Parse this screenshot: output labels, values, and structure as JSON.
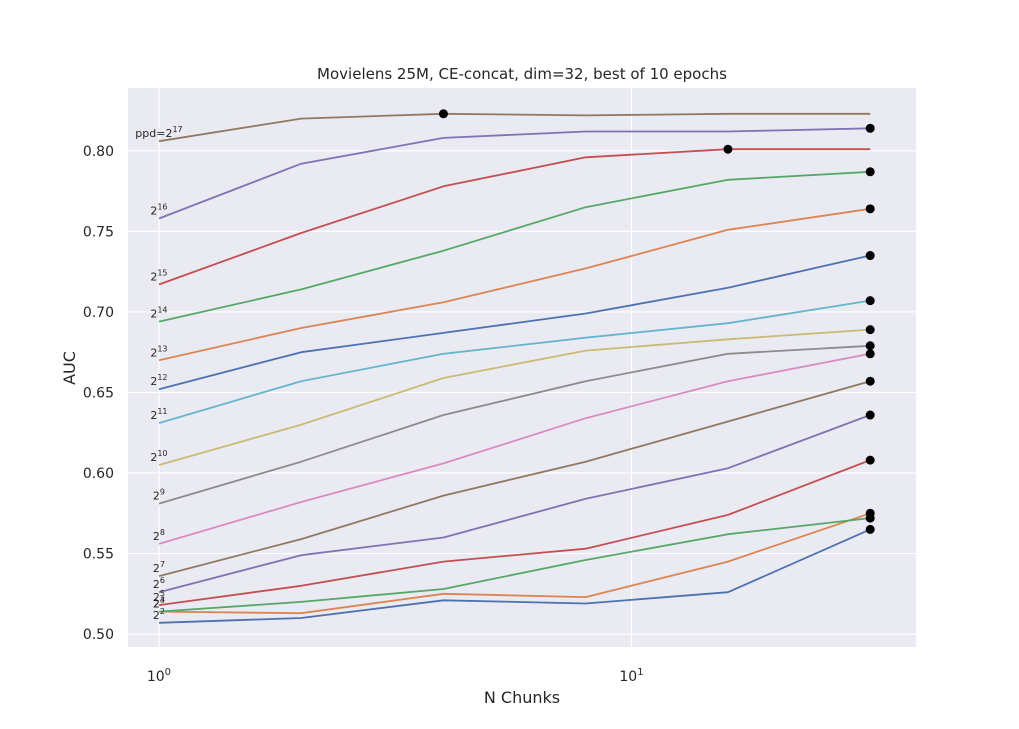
{
  "chart_data": {
    "type": "line",
    "title": "Movielens 25M, CE-concat, dim=32, best of 10 epochs",
    "xlabel": "N Chunks",
    "ylabel": "AUC",
    "xscale": "log",
    "xlim": [
      0.86,
      40
    ],
    "ylim": [
      0.492,
      0.839
    ],
    "grid": true,
    "background": "#eaeaf2",
    "grid_color": "#ffffff",
    "x": [
      1,
      2,
      4,
      8,
      16,
      32
    ],
    "x_ticks": [
      {
        "value": 1,
        "base": "10",
        "exp": "0"
      },
      {
        "value": 10,
        "base": "10",
        "exp": "1"
      }
    ],
    "y_ticks": [
      "0.50",
      "0.55",
      "0.60",
      "0.65",
      "0.70",
      "0.75",
      "0.80"
    ],
    "series": [
      {
        "label_prefix": "",
        "base": "2",
        "exp": "2",
        "color": "#4c72b0",
        "values": [
          0.507,
          0.51,
          0.521,
          0.519,
          0.526,
          0.565
        ],
        "best_index": 5
      },
      {
        "label_prefix": "",
        "base": "2",
        "exp": "3",
        "color": "#dd8452",
        "values": [
          0.514,
          0.513,
          0.525,
          0.523,
          0.545,
          0.575
        ],
        "best_index": 5
      },
      {
        "label_prefix": "",
        "base": "2",
        "exp": "4",
        "color": "#55a868",
        "values": [
          0.514,
          0.52,
          0.528,
          0.546,
          0.562,
          0.572
        ],
        "best_index": 5
      },
      {
        "label_prefix": "",
        "base": "2",
        "exp": "5",
        "color": "#c44e52",
        "values": [
          0.518,
          0.53,
          0.545,
          0.553,
          0.574,
          0.608
        ],
        "best_index": 5
      },
      {
        "label_prefix": "",
        "base": "2",
        "exp": "6",
        "color": "#8172b3",
        "values": [
          0.526,
          0.549,
          0.56,
          0.584,
          0.603,
          0.636
        ],
        "best_index": 5
      },
      {
        "label_prefix": "",
        "base": "2",
        "exp": "7",
        "color": "#937860",
        "values": [
          0.536,
          0.559,
          0.586,
          0.607,
          0.632,
          0.657
        ],
        "best_index": 5
      },
      {
        "label_prefix": "",
        "base": "2",
        "exp": "8",
        "color": "#da8bc3",
        "values": [
          0.556,
          0.582,
          0.606,
          0.634,
          0.657,
          0.674
        ],
        "best_index": 5
      },
      {
        "label_prefix": "",
        "base": "2",
        "exp": "9",
        "color": "#8c8c8c",
        "values": [
          0.581,
          0.607,
          0.636,
          0.657,
          0.674,
          0.679
        ],
        "best_index": 5
      },
      {
        "label_prefix": "",
        "base": "2",
        "exp": "10",
        "color": "#ccb974",
        "values": [
          0.605,
          0.63,
          0.659,
          0.676,
          0.683,
          0.689
        ],
        "best_index": 5
      },
      {
        "label_prefix": "",
        "base": "2",
        "exp": "11",
        "color": "#64b5cd",
        "values": [
          0.631,
          0.657,
          0.674,
          0.684,
          0.693,
          0.707
        ],
        "best_index": 5
      },
      {
        "label_prefix": "",
        "base": "2",
        "exp": "12",
        "color": "#4c72b0",
        "values": [
          0.652,
          0.675,
          0.687,
          0.699,
          0.715,
          0.735
        ],
        "best_index": 5
      },
      {
        "label_prefix": "",
        "base": "2",
        "exp": "13",
        "color": "#dd8452",
        "values": [
          0.67,
          0.69,
          0.706,
          0.727,
          0.751,
          0.764
        ],
        "best_index": 5
      },
      {
        "label_prefix": "",
        "base": "2",
        "exp": "14",
        "color": "#55a868",
        "values": [
          0.694,
          0.714,
          0.738,
          0.765,
          0.782,
          0.787
        ],
        "best_index": 5
      },
      {
        "label_prefix": "",
        "base": "2",
        "exp": "15",
        "color": "#c44e52",
        "values": [
          0.717,
          0.749,
          0.778,
          0.796,
          0.801,
          0.801
        ],
        "best_index": 4
      },
      {
        "label_prefix": "",
        "base": "2",
        "exp": "16",
        "color": "#8172b3",
        "values": [
          0.758,
          0.792,
          0.808,
          0.812,
          0.812,
          0.814
        ],
        "best_index": 5
      },
      {
        "label_prefix": "ppd=",
        "base": "2",
        "exp": "17",
        "color": "#937860",
        "values": [
          0.806,
          0.82,
          0.823,
          0.822,
          0.823,
          0.823
        ],
        "best_index": 2
      }
    ]
  }
}
